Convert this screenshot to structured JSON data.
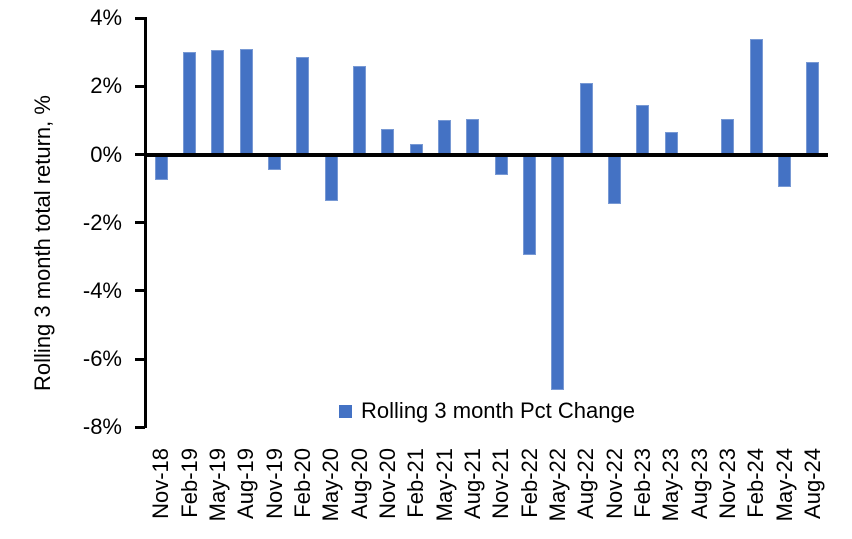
{
  "chart_data": {
    "type": "bar",
    "title": "",
    "ylabel": "Rolling 3 month total return, %",
    "xlabel": "",
    "ylim": [
      -8,
      4
    ],
    "ytick_step": 2,
    "yticks": [
      4,
      2,
      0,
      -2,
      -4,
      -6,
      -8
    ],
    "ytick_labels": [
      "4%",
      "2%",
      "0%",
      "-2%",
      "-4%",
      "-6%",
      "-8%"
    ],
    "grid": false,
    "legend_position": "bottom-center-inside",
    "categories": [
      "Nov-18",
      "Feb-19",
      "May-19",
      "Aug-19",
      "Nov-19",
      "Feb-20",
      "May-20",
      "Aug-20",
      "Nov-20",
      "Feb-21",
      "May-21",
      "Aug-21",
      "Nov-21",
      "Feb-22",
      "May-22",
      "Aug-22",
      "Nov-22",
      "Feb-23",
      "May-23",
      "Aug-23",
      "Nov-23",
      "Feb-24",
      "May-24",
      "Aug-24"
    ],
    "series": [
      {
        "name": "Rolling 3 month Pct Change",
        "values": [
          -0.75,
          3.0,
          3.05,
          3.1,
          -0.45,
          2.85,
          -1.35,
          2.6,
          0.75,
          0.3,
          1.0,
          1.05,
          -0.6,
          -2.95,
          -6.9,
          2.1,
          -1.45,
          1.45,
          0.65,
          0,
          1.05,
          3.4,
          -0.95,
          2.7
        ]
      }
    ],
    "colors": {
      "bar": "#4472C4",
      "axis": "#000000",
      "text": "#000000",
      "background": "#FFFFFF"
    }
  }
}
